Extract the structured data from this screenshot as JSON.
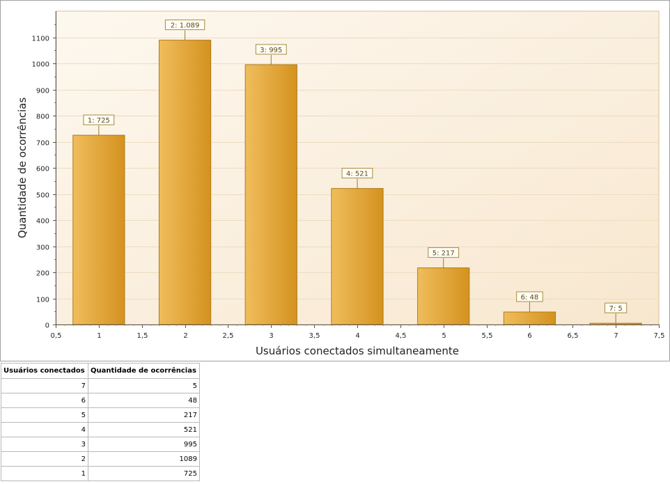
{
  "chart_data": {
    "type": "bar",
    "xlabel": "Usuários conectados simultaneamente",
    "ylabel": "Quantidade de ocorrências",
    "xlim": [
      0.5,
      7.5
    ],
    "ylim": [
      0,
      1200
    ],
    "x_ticks": [
      "0,5",
      "1",
      "1,5",
      "2",
      "2,5",
      "3",
      "3,5",
      "4",
      "4,5",
      "5",
      "5,5",
      "6",
      "6,5",
      "7",
      "7,5"
    ],
    "y_ticks": [
      "0",
      "100",
      "200",
      "300",
      "400",
      "500",
      "600",
      "700",
      "800",
      "900",
      "1000",
      "1100"
    ],
    "grid": true,
    "bar_color": "#e3a63b",
    "bars": [
      {
        "x": 1,
        "value": 725,
        "label": "1: 725"
      },
      {
        "x": 2,
        "value": 1089,
        "label": "2: 1.089"
      },
      {
        "x": 3,
        "value": 995,
        "label": "3: 995"
      },
      {
        "x": 4,
        "value": 521,
        "label": "4: 521"
      },
      {
        "x": 5,
        "value": 217,
        "label": "5: 217"
      },
      {
        "x": 6,
        "value": 48,
        "label": "6: 48"
      },
      {
        "x": 7,
        "value": 5,
        "label": "7: 5"
      }
    ]
  },
  "table": {
    "headers": [
      "Usuários conectados",
      "Quantidade de ocorrências"
    ],
    "rows": [
      [
        "7",
        "5"
      ],
      [
        "6",
        "48"
      ],
      [
        "5",
        "217"
      ],
      [
        "4",
        "521"
      ],
      [
        "3",
        "995"
      ],
      [
        "2",
        "1089"
      ],
      [
        "1",
        "725"
      ]
    ]
  }
}
